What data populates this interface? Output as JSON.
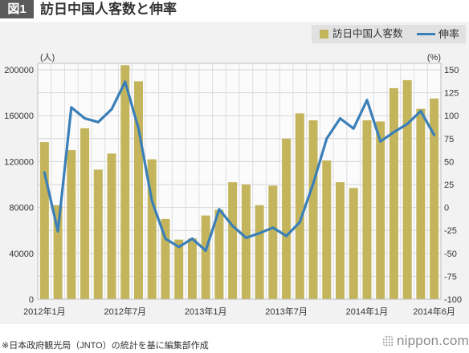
{
  "header": {
    "figure_label": "図1"
  },
  "chart_data": {
    "type": "bar",
    "title": "訪日中国人客数と伸率",
    "categories": [
      "2012年1月",
      "",
      "",
      "",
      "",
      "",
      "2012年7月",
      "",
      "",
      "",
      "",
      "",
      "2013年1月",
      "",
      "",
      "",
      "",
      "",
      "2013年7月",
      "",
      "",
      "",
      "",
      "",
      "2014年1月",
      "",
      "",
      "",
      "",
      "2014年6月"
    ],
    "series": [
      {
        "name": "訪日中国人客数",
        "type": "bar",
        "axis": "left",
        "color": "#c4b55c",
        "values": [
          137000,
          82000,
          130000,
          149000,
          113000,
          127000,
          204000,
          190000,
          122000,
          70000,
          52000,
          53000,
          73000,
          78000,
          102000,
          100000,
          82000,
          99000,
          140000,
          162000,
          156000,
          121000,
          102000,
          97000,
          156000,
          155000,
          184000,
          191000,
          166000,
          175000
        ]
      },
      {
        "name": "伸率",
        "type": "line",
        "axis": "right",
        "color": "#3a7fb8",
        "values": [
          38,
          -26,
          109,
          97,
          93,
          107,
          137,
          86,
          7,
          -34,
          -43,
          -34,
          -47,
          -2,
          -20,
          -33,
          -28,
          -22,
          -31,
          -16,
          26,
          75,
          97,
          86,
          117,
          72,
          82,
          91,
          105,
          79
        ]
      }
    ],
    "y_left": {
      "unit": "(人)",
      "range": [
        0,
        200000
      ],
      "ticks": [
        0,
        40000,
        80000,
        120000,
        160000,
        200000
      ]
    },
    "y_right": {
      "unit": "(%)",
      "range": [
        -100,
        150
      ],
      "ticks": [
        150,
        125,
        100,
        75,
        50,
        25,
        0,
        -25,
        -50,
        -75,
        -100
      ]
    },
    "grid": true,
    "legend_position": "top-right"
  },
  "footer": {
    "note": "※日本政府観光局（JNTO）の統計を基に編集部作成",
    "logo_text": "nippon.com"
  }
}
